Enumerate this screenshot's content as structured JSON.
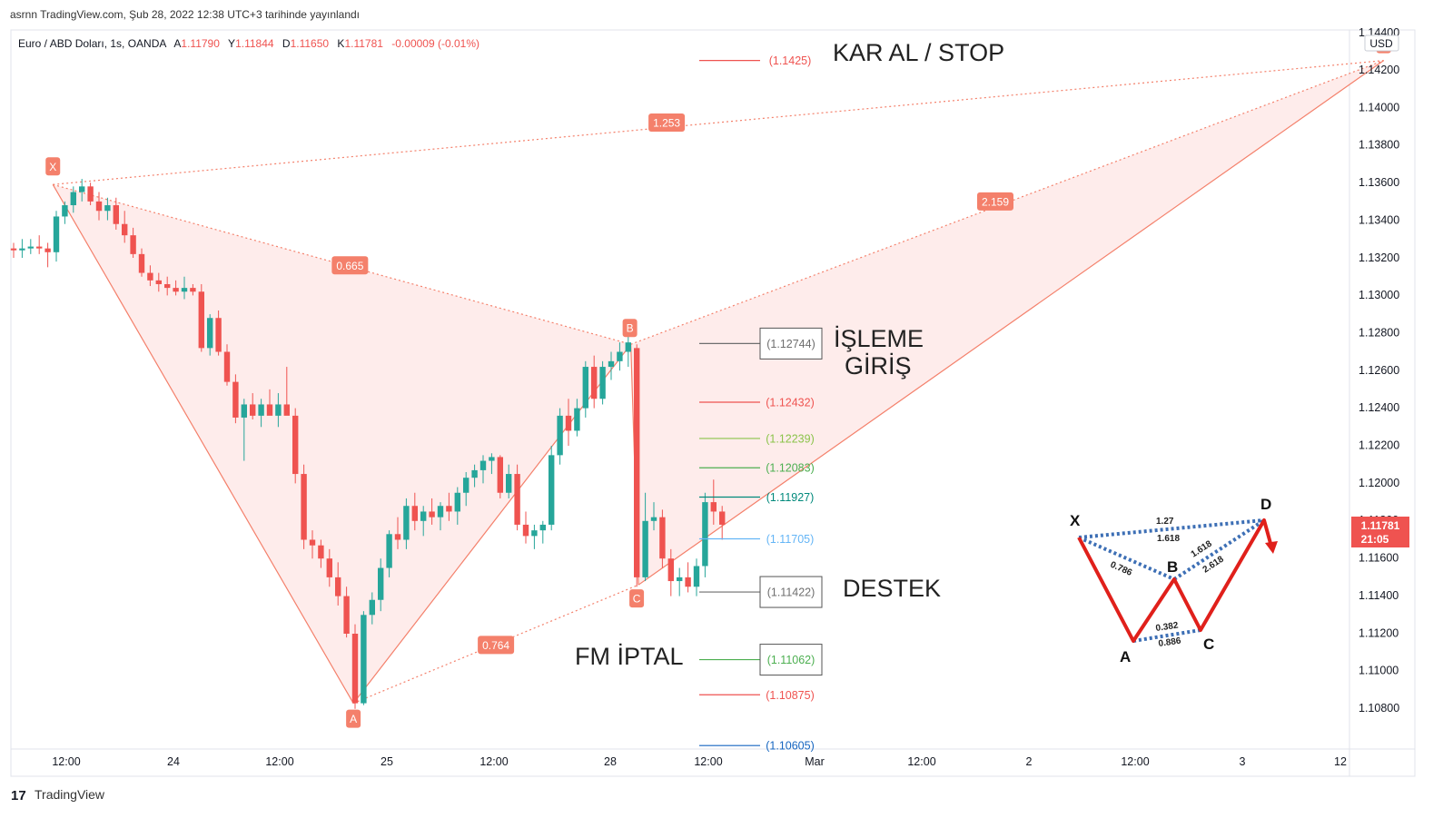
{
  "header": {
    "published": "asrnn TradingView.com, Şub 28, 2022 12:38 UTC+3 tarihinde yayınlandı"
  },
  "legend": {
    "symbol": "Euro / ABD Doları, 1s, OANDA",
    "open_label": "A",
    "open": "1.11790",
    "high_label": "Y",
    "high": "1.11844",
    "low_label": "D",
    "low": "1.11650",
    "close_label": "K",
    "close": "1.11781",
    "change": "-0.00009 (-0.01%)"
  },
  "footer": {
    "brand": "TradingView"
  },
  "colors": {
    "up": "#26a69a",
    "down": "#ef5350",
    "pattern": "#f4806b",
    "pattern_fill": "#fde6e4",
    "axis_text": "#131722"
  },
  "price_axis": {
    "currency": "USD",
    "labels": [
      "1.14400",
      "1.14200",
      "1.14000",
      "1.13800",
      "1.13600",
      "1.13400",
      "1.13200",
      "1.13000",
      "1.12800",
      "1.12600",
      "1.12400",
      "1.12200",
      "1.12000",
      "1.11800",
      "1.11600",
      "1.11400",
      "1.11200",
      "1.11000",
      "1.10800"
    ],
    "current_price": "1.11781",
    "countdown": "21:05"
  },
  "time_axis": {
    "labels": [
      "12:00",
      "24",
      "12:00",
      "25",
      "12:00",
      "28",
      "12:00",
      "Mar",
      "12:00",
      "2",
      "12:00",
      "3",
      "12"
    ]
  },
  "chart_data": {
    "type": "candlestick",
    "symbol": "EURUSD",
    "timeframe": "1h",
    "ylim": [
      1.1067,
      1.1443
    ],
    "candles": [
      [
        1.1325,
        1.1328,
        1.132,
        1.1324
      ],
      [
        1.1324,
        1.133,
        1.132,
        1.1325
      ],
      [
        1.1325,
        1.133,
        1.1322,
        1.1326
      ],
      [
        1.1326,
        1.1332,
        1.1322,
        1.1325
      ],
      [
        1.1325,
        1.1328,
        1.1315,
        1.1323
      ],
      [
        1.1323,
        1.1345,
        1.1318,
        1.1342
      ],
      [
        1.1342,
        1.135,
        1.1338,
        1.1348
      ],
      [
        1.1348,
        1.1358,
        1.1344,
        1.1355
      ],
      [
        1.1355,
        1.1362,
        1.135,
        1.1358
      ],
      [
        1.1358,
        1.136,
        1.1348,
        1.135
      ],
      [
        1.135,
        1.1355,
        1.134,
        1.1345
      ],
      [
        1.1345,
        1.1352,
        1.134,
        1.1348
      ],
      [
        1.1348,
        1.1352,
        1.1335,
        1.1338
      ],
      [
        1.1338,
        1.1345,
        1.1328,
        1.1332
      ],
      [
        1.1332,
        1.1336,
        1.132,
        1.1322
      ],
      [
        1.1322,
        1.1325,
        1.131,
        1.1312
      ],
      [
        1.1312,
        1.1316,
        1.1305,
        1.1308
      ],
      [
        1.1308,
        1.1312,
        1.1302,
        1.1306
      ],
      [
        1.1306,
        1.131,
        1.13,
        1.1304
      ],
      [
        1.1304,
        1.1308,
        1.13,
        1.1302
      ],
      [
        1.1302,
        1.131,
        1.1298,
        1.1304
      ],
      [
        1.1304,
        1.1306,
        1.13,
        1.1302
      ],
      [
        1.1302,
        1.1306,
        1.127,
        1.1272
      ],
      [
        1.1272,
        1.129,
        1.1268,
        1.1288
      ],
      [
        1.1288,
        1.1292,
        1.1268,
        1.127
      ],
      [
        1.127,
        1.1274,
        1.1252,
        1.1254
      ],
      [
        1.1254,
        1.1258,
        1.1232,
        1.1235
      ],
      [
        1.1235,
        1.1245,
        1.1212,
        1.1242
      ],
      [
        1.1242,
        1.1248,
        1.1234,
        1.1236
      ],
      [
        1.1236,
        1.1245,
        1.123,
        1.1242
      ],
      [
        1.1242,
        1.125,
        1.1238,
        1.1236
      ],
      [
        1.1236,
        1.1248,
        1.123,
        1.1242
      ],
      [
        1.1242,
        1.1262,
        1.1238,
        1.1236
      ],
      [
        1.1236,
        1.124,
        1.12,
        1.1205
      ],
      [
        1.1205,
        1.121,
        1.1165,
        1.117
      ],
      [
        1.117,
        1.1175,
        1.116,
        1.1167
      ],
      [
        1.1167,
        1.117,
        1.1155,
        1.116
      ],
      [
        1.116,
        1.1165,
        1.1145,
        1.115
      ],
      [
        1.115,
        1.1158,
        1.1135,
        1.114
      ],
      [
        1.114,
        1.1145,
        1.1118,
        1.112
      ],
      [
        1.112,
        1.1125,
        1.108,
        1.1083
      ],
      [
        1.1083,
        1.1132,
        1.1082,
        1.113
      ],
      [
        1.113,
        1.1142,
        1.1125,
        1.1138
      ],
      [
        1.1138,
        1.116,
        1.1132,
        1.1155
      ],
      [
        1.1155,
        1.1175,
        1.115,
        1.1173
      ],
      [
        1.1173,
        1.1182,
        1.1165,
        1.117
      ],
      [
        1.117,
        1.1192,
        1.1165,
        1.1188
      ],
      [
        1.1188,
        1.1195,
        1.1175,
        1.118
      ],
      [
        1.118,
        1.1188,
        1.1172,
        1.1185
      ],
      [
        1.1185,
        1.1192,
        1.1178,
        1.1182
      ],
      [
        1.1182,
        1.119,
        1.1175,
        1.1188
      ],
      [
        1.1188,
        1.1195,
        1.118,
        1.1185
      ],
      [
        1.1185,
        1.1198,
        1.1178,
        1.1195
      ],
      [
        1.1195,
        1.1206,
        1.1188,
        1.1203
      ],
      [
        1.1203,
        1.121,
        1.1198,
        1.1207
      ],
      [
        1.1207,
        1.1215,
        1.12,
        1.1212
      ],
      [
        1.1212,
        1.1216,
        1.1205,
        1.1214
      ],
      [
        1.1214,
        1.1215,
        1.1192,
        1.1195
      ],
      [
        1.1195,
        1.121,
        1.1192,
        1.1205
      ],
      [
        1.1205,
        1.121,
        1.1175,
        1.1178
      ],
      [
        1.1178,
        1.1185,
        1.1168,
        1.1172
      ],
      [
        1.1172,
        1.1178,
        1.1165,
        1.1175
      ],
      [
        1.1175,
        1.118,
        1.1168,
        1.1178
      ],
      [
        1.1178,
        1.122,
        1.1175,
        1.1215
      ],
      [
        1.1215,
        1.124,
        1.121,
        1.1236
      ],
      [
        1.1236,
        1.1245,
        1.122,
        1.1228
      ],
      [
        1.1228,
        1.1245,
        1.1225,
        1.124
      ],
      [
        1.124,
        1.1265,
        1.1235,
        1.1262
      ],
      [
        1.1262,
        1.1268,
        1.124,
        1.1245
      ],
      [
        1.1245,
        1.1265,
        1.1242,
        1.1262
      ],
      [
        1.1262,
        1.127,
        1.1255,
        1.1265
      ],
      [
        1.1265,
        1.1275,
        1.126,
        1.127
      ],
      [
        1.127,
        1.1278,
        1.1262,
        1.1275
      ],
      [
        1.1272,
        1.1274,
        1.1145,
        1.115
      ],
      [
        1.115,
        1.1195,
        1.1148,
        1.118
      ],
      [
        1.118,
        1.119,
        1.1175,
        1.1182
      ],
      [
        1.1182,
        1.1186,
        1.1155,
        1.116
      ],
      [
        1.116,
        1.1165,
        1.114,
        1.1148
      ],
      [
        1.1148,
        1.1155,
        1.114,
        1.115
      ],
      [
        1.115,
        1.1158,
        1.1142,
        1.1145
      ],
      [
        1.1145,
        1.116,
        1.114,
        1.1156
      ],
      [
        1.1156,
        1.1195,
        1.115,
        1.119
      ],
      [
        1.119,
        1.1202,
        1.1178,
        1.1185
      ],
      [
        1.1185,
        1.1188,
        1.117,
        1.1178
      ]
    ],
    "harmonic_pattern": {
      "type": "bearish crab (XABCD)",
      "points": [
        {
          "label": "X",
          "bar": 4.6,
          "price": 1.1359
        },
        {
          "label": "A",
          "bar": 39.8,
          "price": 1.1083
        },
        {
          "label": "B",
          "bar": 72.3,
          "price": 1.1274
        },
        {
          "label": "C",
          "bar": 73.2,
          "price": 1.1146
        },
        {
          "label": "D",
          "bar": 160.5,
          "price": 1.1425
        }
      ],
      "ratios": [
        {
          "label": "1.253",
          "bar": 76.5,
          "price": 1.1392
        },
        {
          "label": "0.665",
          "bar": 39.4,
          "price": 1.1316
        },
        {
          "label": "2.159",
          "bar": 115.0,
          "price": 1.135
        },
        {
          "label": "0.764",
          "bar": 56.5,
          "price": 1.1114
        }
      ]
    },
    "levels": [
      {
        "value": "(1.1425)",
        "color": "#ef5350",
        "price": 1.1425,
        "boxed": false
      },
      {
        "value": "(1.12744)",
        "color": "#6e6e6e",
        "price": 1.12744,
        "boxed": true
      },
      {
        "value": "(1.12432)",
        "color": "#ef5350",
        "price": 1.12432,
        "boxed": false
      },
      {
        "value": "(1.12239)",
        "color": "#8bc34a",
        "price": 1.12239,
        "boxed": false
      },
      {
        "value": "(1.12083)",
        "color": "#4caf50",
        "price": 1.12083,
        "boxed": false
      },
      {
        "value": "(1.11927)",
        "color": "#00897b",
        "price": 1.11927,
        "boxed": false
      },
      {
        "value": "(1.11705)",
        "color": "#64b5f6",
        "price": 1.11705,
        "boxed": false
      },
      {
        "value": "(1.11422)",
        "color": "#6e6e6e",
        "price": 1.11422,
        "boxed": true
      },
      {
        "value": "(1.11062)",
        "color": "#4caf50",
        "price": 1.11062,
        "boxed": true
      },
      {
        "value": "(1.10875)",
        "color": "#ef5350",
        "price": 1.10875,
        "boxed": false
      },
      {
        "value": "(1.10605)",
        "color": "#1565c0",
        "price": 1.10605,
        "boxed": false
      }
    ],
    "annotations": {
      "take_profit_stop": "KAR AL / STOP",
      "entry_line1": "İŞLEME",
      "entry_line2": "GİRİŞ",
      "support": "DESTEK",
      "cancel": "FM İPTAL"
    },
    "inset_pattern": {
      "points": [
        "X",
        "A",
        "B",
        "C",
        "D"
      ],
      "ratios": [
        "1.27",
        "1.618",
        "0.786",
        "1.618",
        "2.618",
        "0.382",
        "0.886"
      ]
    }
  }
}
